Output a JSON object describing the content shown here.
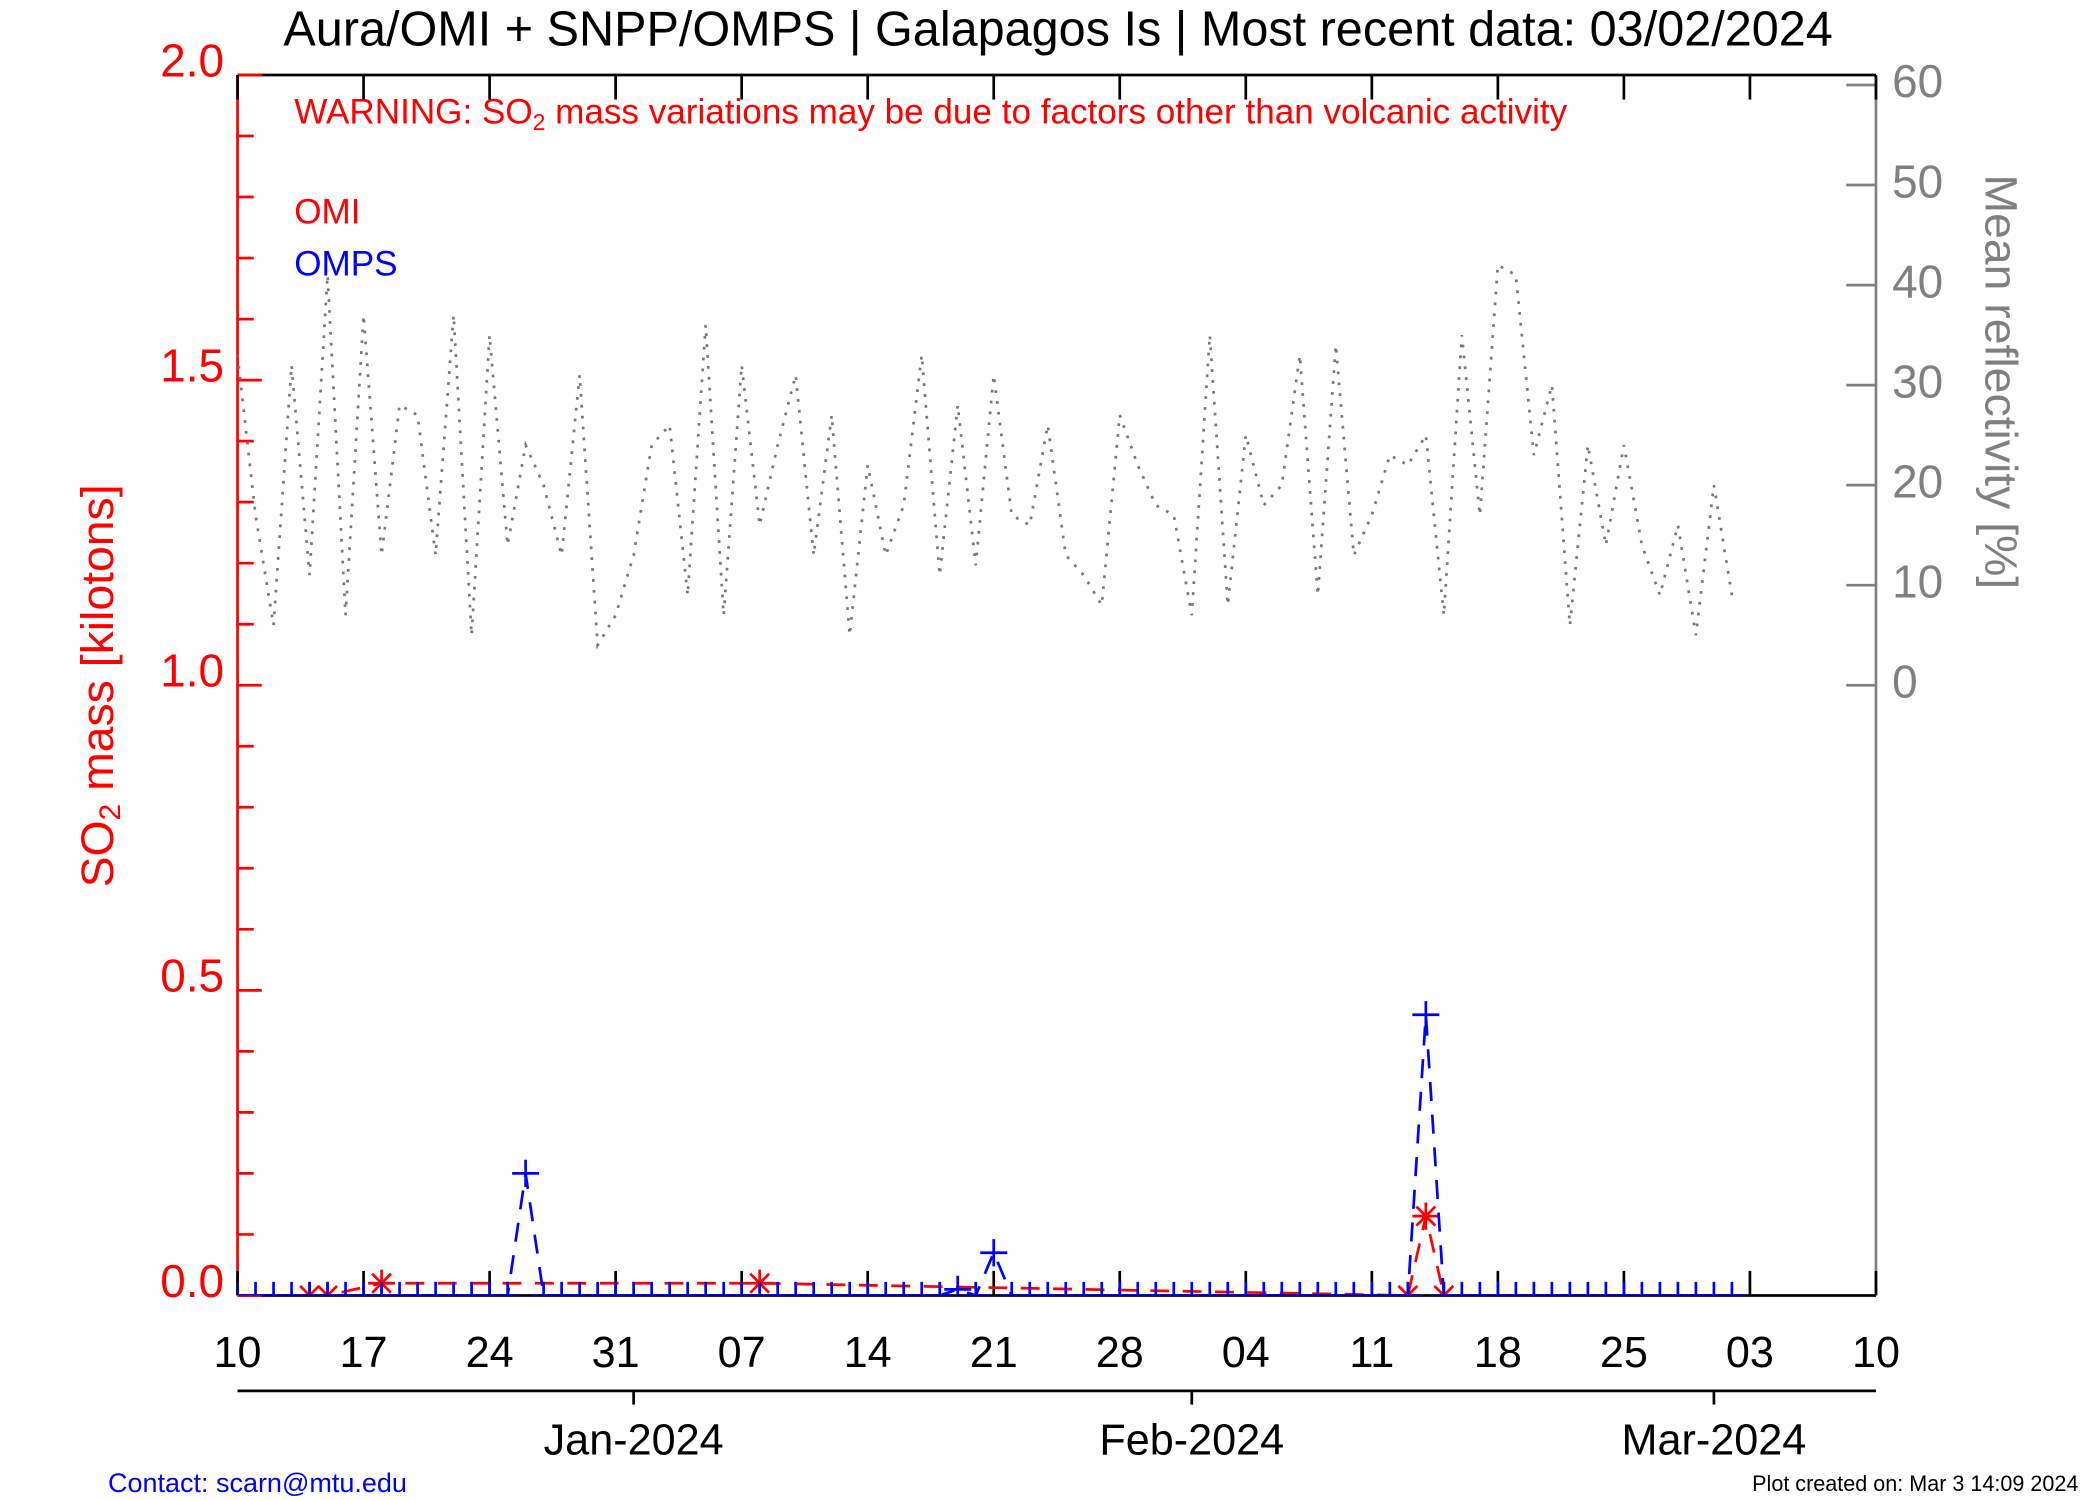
{
  "chart_data": {
    "type": "line",
    "title": "Aura/OMI + SNPP/OMPS | Galapagos Is | Most recent data: 03/02/2024",
    "annotation": {
      "pre": "WARNING: SO",
      "sub": "2",
      "post": " mass variations may be due to factors other than volcanic activity"
    },
    "ylabel": {
      "pre": "SO",
      "sub": "2",
      "post": " mass [kilotons]"
    },
    "y2label": "Mean reflectivity [%]",
    "xlim": [
      0,
      91
    ],
    "xticks": [
      {
        "value": 0,
        "label": "10"
      },
      {
        "value": 7,
        "label": "17"
      },
      {
        "value": 14,
        "label": "24"
      },
      {
        "value": 21,
        "label": "31"
      },
      {
        "value": 28,
        "label": "07"
      },
      {
        "value": 35,
        "label": "14"
      },
      {
        "value": 42,
        "label": "21"
      },
      {
        "value": 49,
        "label": "28"
      },
      {
        "value": 56,
        "label": "04"
      },
      {
        "value": 63,
        "label": "11"
      },
      {
        "value": 70,
        "label": "18"
      },
      {
        "value": 77,
        "label": "25"
      },
      {
        "value": 84,
        "label": "03"
      },
      {
        "value": 91,
        "label": "10"
      }
    ],
    "month_ticks": [
      {
        "value": 22,
        "label": "Jan-2024"
      },
      {
        "value": 53,
        "label": "Feb-2024"
      },
      {
        "value": 82,
        "label": "Mar-2024"
      }
    ],
    "ylim": [
      0,
      2
    ],
    "yticks": [
      {
        "value": 0,
        "label": "0.0"
      },
      0.5,
      {
        "value": 1,
        "label": "1.0"
      },
      1.5,
      {
        "value": 2,
        "label": "2.0"
      }
    ],
    "yminorticks": [
      0.1,
      0.2,
      0.3,
      0.4,
      0.6,
      0.7,
      0.8,
      0.9,
      1.1,
      1.2,
      1.3,
      1.4,
      1.6,
      1.7,
      1.8,
      1.9
    ],
    "y2lim": [
      -61,
      61
    ],
    "y2ticks": [
      0,
      10,
      20,
      30,
      40,
      50,
      60
    ],
    "series": [
      {
        "name": "OMI",
        "color": "#ff0000",
        "marker": "asterisk",
        "x": [
          4,
          5,
          8,
          29,
          65,
          66,
          67
        ],
        "values": [
          0,
          0,
          0.02,
          0.02,
          0,
          0.13,
          0
        ]
      },
      {
        "name": "OMPS",
        "color": "#0000ff",
        "marker": "plus",
        "x": [
          0,
          1,
          2,
          3,
          4,
          5,
          6,
          7,
          8,
          9,
          10,
          11,
          12,
          13,
          14,
          15,
          16,
          17,
          18,
          19,
          20,
          21,
          22,
          23,
          24,
          25,
          26,
          27,
          28,
          29,
          30,
          31,
          32,
          33,
          34,
          35,
          36,
          37,
          38,
          39,
          40,
          41,
          42,
          43,
          44,
          45,
          46,
          47,
          48,
          49,
          50,
          51,
          52,
          53,
          54,
          55,
          56,
          57,
          58,
          59,
          60,
          61,
          62,
          63,
          64,
          65,
          66,
          67,
          68,
          69,
          70,
          71,
          72,
          73,
          74,
          75,
          76,
          77,
          78,
          79,
          80,
          81,
          82,
          83
        ],
        "values": [
          0,
          0,
          0,
          0,
          0,
          0,
          0,
          0,
          0,
          0,
          0,
          0,
          0,
          0,
          0,
          0,
          0.2,
          0,
          0,
          0,
          0,
          0,
          0,
          0,
          0,
          0,
          0,
          0,
          0,
          0,
          0,
          0,
          0,
          0,
          0,
          0,
          0,
          0,
          0,
          0,
          0.01,
          0,
          0.07,
          0,
          0,
          0,
          0,
          0,
          0,
          0,
          0,
          0,
          0,
          0,
          0,
          0,
          0,
          0,
          0,
          0,
          0,
          0,
          0,
          0,
          0,
          0,
          0.46,
          0,
          0,
          0,
          0,
          0,
          0,
          0,
          0,
          0,
          0,
          0,
          0,
          0,
          0,
          0,
          0,
          0
        ]
      },
      {
        "color": "#777777",
        "axis": "y2",
        "style": "dotted",
        "x": [
          0,
          1,
          2,
          3,
          4,
          5,
          6,
          7,
          8,
          9,
          10,
          11,
          12,
          13,
          14,
          15,
          16,
          17,
          18,
          19,
          20,
          21,
          22,
          23,
          24,
          25,
          26,
          27,
          28,
          29,
          30,
          31,
          32,
          33,
          34,
          35,
          36,
          37,
          38,
          39,
          40,
          41,
          42,
          43,
          44,
          45,
          46,
          47,
          48,
          49,
          50,
          51,
          52,
          53,
          54,
          55,
          56,
          57,
          58,
          59,
          60,
          61,
          62,
          63,
          64,
          65,
          66,
          67,
          68,
          69,
          70,
          71,
          72,
          73,
          74,
          75,
          76,
          77,
          78,
          79,
          80,
          81,
          82,
          83
        ],
        "values": [
          33,
          17,
          6,
          32,
          11,
          41,
          7,
          37,
          13,
          28,
          27,
          13,
          37,
          5,
          35,
          14,
          24,
          20,
          13,
          31,
          4,
          7,
          13,
          24,
          26,
          9,
          36,
          7,
          32,
          16,
          24,
          31,
          13,
          27,
          5,
          22,
          13,
          18,
          33,
          11,
          28,
          12,
          31,
          17,
          16,
          26,
          13,
          11,
          8,
          27,
          22,
          18,
          17,
          7,
          35,
          8,
          25,
          18,
          20,
          33,
          9,
          34,
          13,
          17,
          23,
          22,
          25,
          7,
          35,
          17,
          42,
          41,
          23,
          30,
          6,
          24,
          14,
          24,
          14,
          9,
          16,
          5,
          20,
          9
        ]
      }
    ],
    "contact": "Contact: scarn@mtu.edu",
    "created": "Plot created on: Mar  3 14:09 2024"
  }
}
